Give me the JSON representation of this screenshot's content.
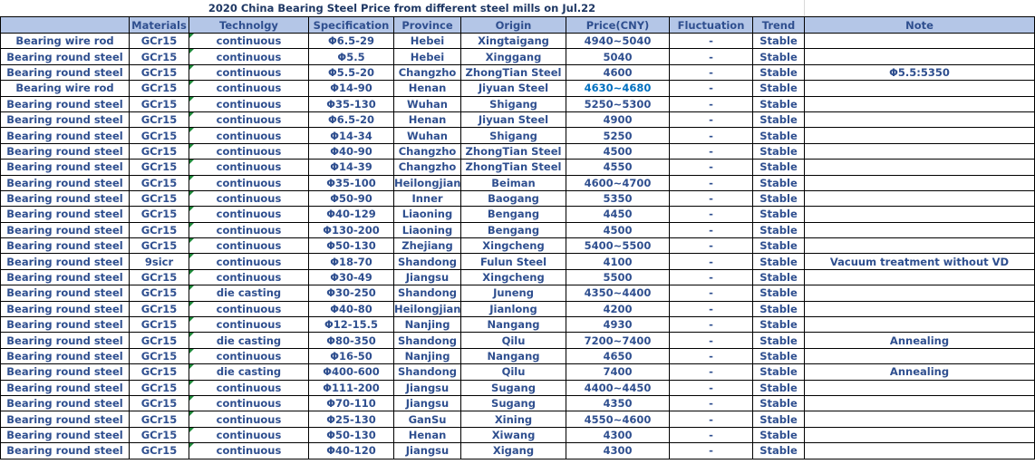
{
  "title": "2020 China Bearing Steel Price from different steel mills on  Jul.22",
  "colors": {
    "header_bg": "#b4c6e7",
    "text": "#2f4f8f",
    "highlight_price": "#0070c0"
  },
  "columns": [
    "",
    "Materials",
    "Technolgy",
    "Specification",
    "Province",
    "Origin",
    "Price(CNY)",
    "Fluctuation",
    "Trend",
    "Note"
  ],
  "rows": [
    [
      "Bearing wire rod",
      "GCr15",
      "continuous",
      "Φ6.5-29",
      "Hebei",
      "Xingtaigang",
      "4940~5040",
      "-",
      "Stable",
      ""
    ],
    [
      "Bearing round steel",
      "GCr15",
      "continuous",
      "Φ5.5",
      "Hebei",
      "Xinggang",
      "5040",
      "-",
      "Stable",
      ""
    ],
    [
      "Bearing round steel",
      "GCr15",
      "continuous",
      "Φ5.5-20",
      "Changzho",
      "ZhongTian Steel",
      "4600",
      "-",
      "Stable",
      "Φ5.5:5350"
    ],
    [
      "Bearing wire rod",
      "GCr15",
      "continuous",
      "Φ14-90",
      "Henan",
      "Jiyuan Steel",
      "4630~4680",
      "-",
      "Stable",
      ""
    ],
    [
      "Bearing round steel",
      "GCr15",
      "continuous",
      "Φ35-130",
      "Wuhan",
      "Shigang",
      "5250~5300",
      "-",
      "Stable",
      ""
    ],
    [
      "Bearing round steel",
      "GCr15",
      "continuous",
      "Φ6.5-20",
      "Henan",
      "Jiyuan Steel",
      "4900",
      "-",
      "Stable",
      ""
    ],
    [
      "Bearing round steel",
      "GCr15",
      "continuous",
      "Φ14-34",
      "Wuhan",
      "Shigang",
      "5250",
      "-",
      "Stable",
      ""
    ],
    [
      "Bearing round steel",
      "GCr15",
      "continuous",
      "Φ40-90",
      "Changzho",
      "ZhongTian Steel",
      "4500",
      "-",
      "Stable",
      ""
    ],
    [
      "Bearing round steel",
      "GCr15",
      "continuous",
      "Φ14-39",
      "Changzho",
      "ZhongTian Steel",
      "4550",
      "-",
      "Stable",
      ""
    ],
    [
      "Bearing round steel",
      "GCr15",
      "continuous",
      "Φ35-100",
      "Heilongjian",
      "Beiman",
      "4600~4700",
      "-",
      "Stable",
      ""
    ],
    [
      "Bearing round steel",
      "GCr15",
      "continuous",
      "Φ50-90",
      "Inner",
      "Baogang",
      "5350",
      "-",
      "Stable",
      ""
    ],
    [
      "Bearing round steel",
      "GCr15",
      "continuous",
      "Φ40-129",
      "Liaoning",
      "Bengang",
      "4450",
      "-",
      "Stable",
      ""
    ],
    [
      "Bearing round steel",
      "GCr15",
      "continuous",
      "Φ130-200",
      "Liaoning",
      "Bengang",
      "4500",
      "-",
      "Stable",
      ""
    ],
    [
      "Bearing round steel",
      "GCr15",
      "continuous",
      "Φ50-130",
      "Zhejiang",
      "Xingcheng",
      "5400~5500",
      "-",
      "Stable",
      ""
    ],
    [
      "Bearing round steel",
      "9sicr",
      "continuous",
      "Φ18-70",
      "Shandong",
      "Fulun Steel",
      "4100",
      "-",
      "Stable",
      "Vacuum treatment without VD"
    ],
    [
      "Bearing round steel",
      "GCr15",
      "continuous",
      "Φ30-49",
      "Jiangsu",
      "Xingcheng",
      "5500",
      "-",
      "Stable",
      ""
    ],
    [
      "Bearing round steel",
      "GCr15",
      "die casting",
      "Φ30-250",
      "Shandong",
      "Juneng",
      "4350~4400",
      "-",
      "Stable",
      ""
    ],
    [
      "Bearing round steel",
      "GCr15",
      "continuous",
      "Φ40-80",
      "Heilongjian",
      "Jianlong",
      "4200",
      "-",
      "Stable",
      ""
    ],
    [
      "Bearing round steel",
      "GCr15",
      "continuous",
      "Φ12-15.5",
      "Nanjing",
      "Nangang",
      "4930",
      "-",
      "Stable",
      ""
    ],
    [
      "Bearing round steel",
      "GCr15",
      "die casting",
      "Φ80-350",
      "Shandong",
      "Qilu",
      "7200~7400",
      "-",
      "Stable",
      "Annealing"
    ],
    [
      "Bearing round steel",
      "GCr15",
      "continuous",
      "Φ16-50",
      "Nanjing",
      "Nangang",
      "4650",
      "-",
      "Stable",
      ""
    ],
    [
      "Bearing round steel",
      "GCr15",
      "die casting",
      "Φ400-600",
      "Shandong",
      "Qilu",
      "7400",
      "-",
      "Stable",
      "Annealing"
    ],
    [
      "Bearing round steel",
      "GCr15",
      "continuous",
      "Φ111-200",
      "Jiangsu",
      "Sugang",
      "4400~4450",
      "-",
      "Stable",
      ""
    ],
    [
      "Bearing round steel",
      "GCr15",
      "continuous",
      "Φ70-110",
      "Jiangsu",
      "Sugang",
      "4350",
      "-",
      "Stable",
      ""
    ],
    [
      "Bearing round steel",
      "GCr15",
      "continuous",
      "Φ25-130",
      "GanSu",
      "Xining",
      "4550~4600",
      "-",
      "Stable",
      ""
    ],
    [
      "Bearing round steel",
      "GCr15",
      "continuous",
      "Φ50-130",
      "Henan",
      "Xiwang",
      "4300",
      "-",
      "Stable",
      ""
    ],
    [
      "Bearing round steel",
      "GCr15",
      "continuous",
      "Φ40-120",
      "Jiangsu",
      "Xigang",
      "4300",
      "-",
      "Stable",
      ""
    ]
  ],
  "highlighted_cells": [
    {
      "row": 3,
      "col": 6
    }
  ]
}
